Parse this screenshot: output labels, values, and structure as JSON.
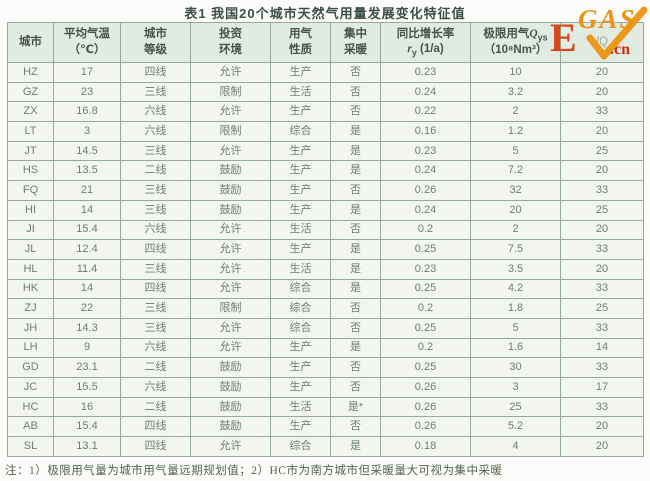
{
  "page": {
    "title": "表1  我国20个城市天然气用量发展变化特征值",
    "footnote": "注：1）极限用气量为城市用气量远期规划值；2）HC市为南方城市但采暖量大可视为集中采暖"
  },
  "logo": {
    "e": "E",
    "gas": "GAS",
    "cn": ".cn",
    "orange": "#ec9312",
    "red": "#d5491c"
  },
  "colors": {
    "header_bg": "#e2ebe1",
    "row_bg": "#f3f6ef",
    "border": "#93aa9c",
    "text": "#6d7e71"
  },
  "table": {
    "headers": {
      "city": "城市",
      "temp1": "平均气温",
      "temp2": "（℃）",
      "grade1": "城市",
      "grade2": "等级",
      "invest1": "投资",
      "invest2": "环境",
      "use1": "用气",
      "use2": "性质",
      "heat1": "集中",
      "heat2": "采暖",
      "rate1": "同比增长率",
      "rate_var": "r",
      "rate_sub": "y",
      "rate_unit": " (1/a)",
      "limit1": "极限用气",
      "limit_var": "Q",
      "limit_sub": "ys",
      "limit2": "（10⁸Nm³）",
      "last_fragment": "/Q"
    },
    "rows": [
      [
        "HZ",
        "17",
        "四线",
        "允许",
        "生产",
        "否",
        "0.23",
        "10",
        "20"
      ],
      [
        "GZ",
        "23",
        "三线",
        "限制",
        "生活",
        "否",
        "0.24",
        "3.2",
        "20"
      ],
      [
        "ZX",
        "16.8",
        "六线",
        "允许",
        "生产",
        "否",
        "0.22",
        "2",
        "33"
      ],
      [
        "LT",
        "3",
        "六线",
        "限制",
        "综合",
        "是",
        "0.16",
        "1.2",
        "20"
      ],
      [
        "JT",
        "14.5",
        "三线",
        "允许",
        "生产",
        "是",
        "0.23",
        "5",
        "25"
      ],
      [
        "HS",
        "13.5",
        "二线",
        "鼓励",
        "生产",
        "是",
        "0.24",
        "7.2",
        "20"
      ],
      [
        "FQ",
        "21",
        "三线",
        "鼓励",
        "生产",
        "否",
        "0.26",
        "32",
        "33"
      ],
      [
        "HI",
        "14",
        "三线",
        "鼓励",
        "生产",
        "是",
        "0.24",
        "20",
        "25"
      ],
      [
        "JI",
        "15.4",
        "六线",
        "允许",
        "生活",
        "否",
        "0.2",
        "2",
        "20"
      ],
      [
        "JL",
        "12.4",
        "四线",
        "允许",
        "生产",
        "是",
        "0.25",
        "7.5",
        "33"
      ],
      [
        "HL",
        "11.4",
        "三线",
        "允许",
        "生活",
        "是",
        "0.23",
        "3.5",
        "20"
      ],
      [
        "HK",
        "14",
        "四线",
        "允许",
        "综合",
        "是",
        "0.25",
        "4.2",
        "33"
      ],
      [
        "ZJ",
        "22",
        "三线",
        "限制",
        "综合",
        "否",
        "0.2",
        "1.8",
        "25"
      ],
      [
        "JH",
        "14.3",
        "三线",
        "允许",
        "综合",
        "否",
        "0.25",
        "5",
        "33"
      ],
      [
        "LH",
        "9",
        "六线",
        "允许",
        "生产",
        "是",
        "0.2",
        "1.6",
        "14"
      ],
      [
        "GD",
        "23.1",
        "二线",
        "鼓励",
        "生产",
        "否",
        "0.25",
        "30",
        "33"
      ],
      [
        "JC",
        "15.5",
        "六线",
        "鼓励",
        "生产",
        "否",
        "0.26",
        "3",
        "17"
      ],
      [
        "HC",
        "16",
        "二线",
        "鼓励",
        "生活",
        "是*",
        "0.26",
        "25",
        "33"
      ],
      [
        "AB",
        "15.4",
        "四线",
        "鼓励",
        "生产",
        "否",
        "0.26",
        "5.2",
        "20"
      ],
      [
        "SL",
        "13.1",
        "四线",
        "允许",
        "综合",
        "是",
        "0.18",
        "4",
        "20"
      ]
    ]
  }
}
